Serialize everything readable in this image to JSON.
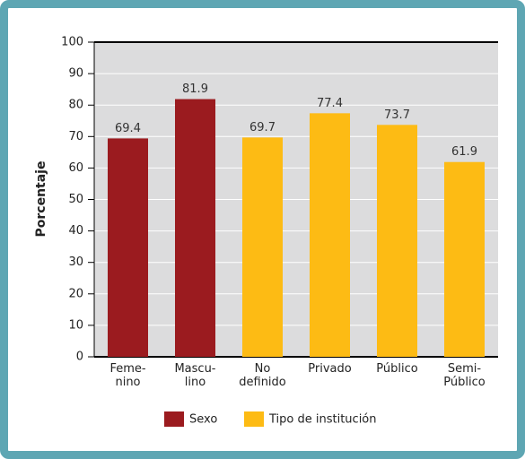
{
  "chart_data": {
    "type": "bar",
    "y_label": "Porcentaje",
    "categories": [
      "Feme-\nnino",
      "Mascu-\nlino",
      "No\ndefinido",
      "Privado",
      "Público",
      "Semi-\nPúblico"
    ],
    "series": [
      {
        "name": "Sexo",
        "color": "#9b1b1f",
        "values": [
          69.4,
          81.9,
          null,
          null,
          null,
          null
        ]
      },
      {
        "name": "Tipo de institución",
        "color": "#fdbb14",
        "values": [
          null,
          null,
          69.7,
          77.4,
          73.7,
          61.9
        ]
      }
    ],
    "ylim": [
      0,
      100
    ],
    "yticks": [
      0,
      10,
      20,
      30,
      40,
      50,
      60,
      70,
      80,
      90,
      100
    ],
    "grid": true,
    "legend": "bottom"
  }
}
